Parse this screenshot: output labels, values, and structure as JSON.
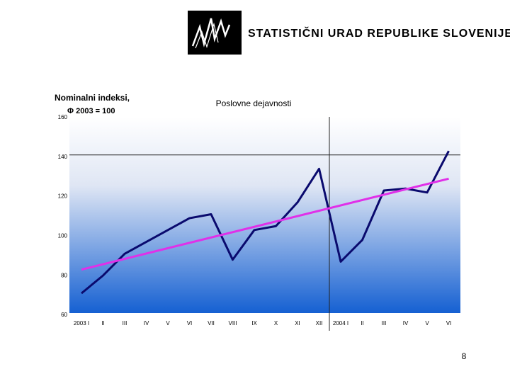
{
  "header": {
    "organization": "STATISTIČNI URAD REPUBLIKE SLOVENIJE"
  },
  "chart_data": {
    "type": "line",
    "title": "Poslovne dejavnosti",
    "y_label_lines": [
      "Nominalni indeksi,",
      "Φ 2003 = 100"
    ],
    "categories": [
      "2003 I",
      "II",
      "III",
      "IV",
      "V",
      "VI",
      "VII",
      "VIII",
      "IX",
      "X",
      "XI",
      "XII",
      "2004 I",
      "II",
      "III",
      "IV",
      "V",
      "VI"
    ],
    "series": [
      {
        "color": "#0a0a6e",
        "values": [
          70,
          79,
          90,
          96,
          102,
          108,
          110,
          87,
          102,
          104,
          116,
          133,
          86,
          97,
          122,
          123,
          121,
          142
        ]
      }
    ],
    "trend": {
      "color": "#e030e8",
      "values": [
        82,
        128
      ]
    },
    "ylim": [
      60,
      160
    ],
    "yticks": [
      60,
      80,
      100,
      120,
      140,
      160
    ],
    "reference_line": 140
  },
  "page_number": "8"
}
